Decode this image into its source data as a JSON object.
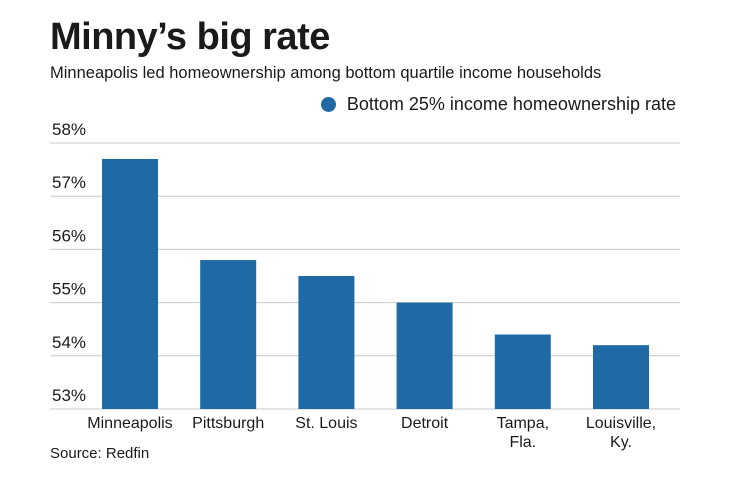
{
  "header": {
    "title": "Minny’s big rate",
    "subtitle": "Minneapolis led homeownership among bottom quartile income households"
  },
  "footer": {
    "source": "Source: Redfin"
  },
  "colors": {
    "bar": "#1f6aa5",
    "grid": "#c8c8c8"
  },
  "chart_data": {
    "type": "bar",
    "title": "Minny’s big rate",
    "subtitle": "Minneapolis led homeownership among bottom quartile income households",
    "xlabel": "",
    "ylabel": "",
    "categories": [
      [
        "Minneapolis"
      ],
      [
        "Pittsburgh"
      ],
      [
        "St. Louis"
      ],
      [
        "Detroit"
      ],
      [
        "Tampa,",
        "Fla."
      ],
      [
        "Louisville,",
        "Ky."
      ]
    ],
    "series": [
      {
        "name": "Bottom 25% income homeownership rate",
        "values": [
          57.7,
          55.8,
          55.5,
          55.0,
          54.4,
          54.2
        ]
      }
    ],
    "ylim": [
      53,
      58
    ],
    "yticks": [
      53,
      54,
      55,
      56,
      57,
      58
    ],
    "ytick_labels": [
      "53%",
      "54%",
      "55%",
      "56%",
      "57%",
      "58%"
    ],
    "grid": true,
    "legend": "top-right"
  }
}
